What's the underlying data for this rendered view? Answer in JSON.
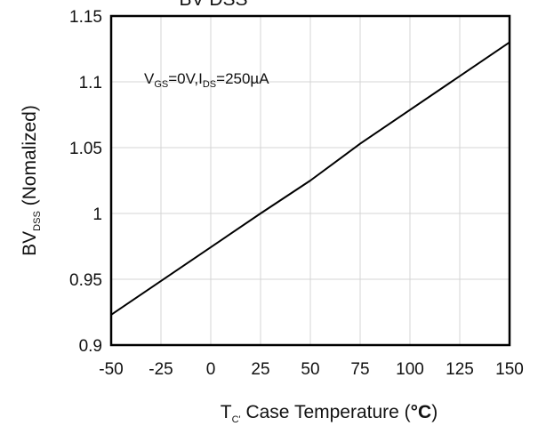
{
  "chart_data": {
    "type": "line",
    "title_partial": "BV DSS",
    "xlabel": {
      "main": "T",
      "sub": "C'",
      "rest": " Case Temperature (",
      "unit": "°C",
      "close": ")"
    },
    "ylabel": {
      "main": "BV",
      "sub": "DSS",
      "rest": " (Nomalized)"
    },
    "annotation": {
      "v": "V",
      "v_sub": "GS",
      "v_val": "=0V,I",
      "i_sub": "DS",
      "i_val": "=250µA"
    },
    "xlim": [
      -50,
      150
    ],
    "ylim": [
      0.9,
      1.15
    ],
    "x_ticks": [
      -50,
      -25,
      0,
      25,
      50,
      75,
      100,
      125,
      150
    ],
    "x_tick_labels": [
      "-50",
      "-25",
      "0",
      "25",
      "50",
      "75",
      "100",
      "125",
      "150"
    ],
    "y_ticks": [
      0.9,
      0.95,
      1.0,
      1.05,
      1.1,
      1.15
    ],
    "y_tick_labels": [
      "0.9",
      "0.95",
      "1",
      "1.05",
      "1.1",
      "1.15"
    ],
    "grid": true,
    "series": [
      {
        "color": "#000000",
        "x": [
          -50,
          25,
          50,
          75,
          150
        ],
        "y": [
          0.923,
          1.0,
          1.025,
          1.053,
          1.13
        ]
      }
    ]
  }
}
